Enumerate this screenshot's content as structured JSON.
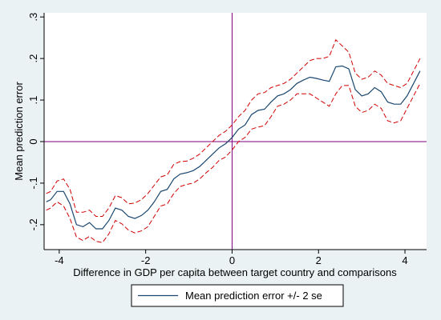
{
  "chart_data": {
    "type": "line",
    "title": "",
    "xlabel": "Difference in GDP per capita between target country and comparisons",
    "ylabel": "Mean prediction error",
    "xlim": [
      -4.35,
      4.5
    ],
    "ylim": [
      -0.26,
      0.31
    ],
    "x_ticks": [
      -4,
      -2,
      0,
      2,
      4
    ],
    "x_tick_labels": [
      "-4",
      "-2",
      "0",
      "2",
      "4"
    ],
    "y_ticks": [
      -0.2,
      -0.1,
      0,
      0.1,
      0.2,
      0.3
    ],
    "y_tick_labels": [
      "-.2",
      "-.1",
      "0",
      ".1",
      ".2",
      ".3"
    ],
    "grid": false,
    "reference_lines": {
      "x": 0,
      "y": 0,
      "color": "#800080"
    },
    "legend": {
      "position": "bottom-center",
      "label": "Mean prediction error +/- 2 se"
    },
    "colors": {
      "mean": "#1a476f",
      "band": "#d00000",
      "reference": "#800080",
      "plot_bg": "#ffffff",
      "outer_bg": "#eaf2f3"
    },
    "series": [
      {
        "role": "mean",
        "style": "solid",
        "x": [
          -4.3,
          -4.2,
          -4.05,
          -3.9,
          -3.75,
          -3.6,
          -3.45,
          -3.3,
          -3.15,
          -3.0,
          -2.85,
          -2.7,
          -2.55,
          -2.4,
          -2.25,
          -2.1,
          -1.95,
          -1.8,
          -1.65,
          -1.5,
          -1.35,
          -1.2,
          -1.05,
          -0.9,
          -0.75,
          -0.6,
          -0.45,
          -0.3,
          -0.15,
          0.0,
          0.15,
          0.3,
          0.45,
          0.6,
          0.75,
          0.9,
          1.05,
          1.2,
          1.35,
          1.5,
          1.65,
          1.8,
          1.95,
          2.1,
          2.25,
          2.4,
          2.55,
          2.7,
          2.85,
          3.0,
          3.15,
          3.3,
          3.45,
          3.6,
          3.75,
          3.9,
          4.05,
          4.2,
          4.35
        ],
        "y": [
          -0.145,
          -0.14,
          -0.12,
          -0.12,
          -0.15,
          -0.2,
          -0.205,
          -0.195,
          -0.21,
          -0.21,
          -0.19,
          -0.16,
          -0.165,
          -0.18,
          -0.185,
          -0.178,
          -0.165,
          -0.145,
          -0.12,
          -0.115,
          -0.09,
          -0.078,
          -0.075,
          -0.07,
          -0.06,
          -0.045,
          -0.03,
          -0.015,
          -0.005,
          0.01,
          0.03,
          0.04,
          0.065,
          0.075,
          0.078,
          0.095,
          0.11,
          0.115,
          0.125,
          0.14,
          0.148,
          0.155,
          0.152,
          0.148,
          0.145,
          0.18,
          0.182,
          0.175,
          0.125,
          0.11,
          0.115,
          0.13,
          0.12,
          0.095,
          0.09,
          0.09,
          0.11,
          0.14,
          0.17
        ]
      },
      {
        "role": "upper",
        "style": "dashed",
        "x": [
          -4.3,
          -4.2,
          -4.05,
          -3.9,
          -3.75,
          -3.6,
          -3.45,
          -3.3,
          -3.15,
          -3.0,
          -2.85,
          -2.7,
          -2.55,
          -2.4,
          -2.25,
          -2.1,
          -1.95,
          -1.8,
          -1.65,
          -1.5,
          -1.35,
          -1.2,
          -1.05,
          -0.9,
          -0.75,
          -0.6,
          -0.45,
          -0.3,
          -0.15,
          0.0,
          0.15,
          0.3,
          0.45,
          0.6,
          0.75,
          0.9,
          1.05,
          1.2,
          1.35,
          1.5,
          1.65,
          1.8,
          1.95,
          2.1,
          2.25,
          2.4,
          2.55,
          2.7,
          2.85,
          3.0,
          3.15,
          3.3,
          3.45,
          3.6,
          3.75,
          3.9,
          4.05,
          4.2,
          4.35
        ],
        "y": [
          -0.125,
          -0.12,
          -0.095,
          -0.09,
          -0.115,
          -0.17,
          -0.17,
          -0.165,
          -0.18,
          -0.18,
          -0.16,
          -0.13,
          -0.135,
          -0.15,
          -0.148,
          -0.14,
          -0.125,
          -0.105,
          -0.085,
          -0.08,
          -0.055,
          -0.048,
          -0.047,
          -0.04,
          -0.03,
          -0.015,
          0.0,
          0.015,
          0.025,
          0.04,
          0.06,
          0.075,
          0.1,
          0.115,
          0.118,
          0.13,
          0.135,
          0.14,
          0.15,
          0.165,
          0.18,
          0.195,
          0.2,
          0.2,
          0.205,
          0.245,
          0.23,
          0.215,
          0.165,
          0.15,
          0.155,
          0.17,
          0.16,
          0.14,
          0.135,
          0.13,
          0.14,
          0.17,
          0.2
        ]
      },
      {
        "role": "lower",
        "style": "dashed",
        "x": [
          -4.3,
          -4.2,
          -4.05,
          -3.9,
          -3.75,
          -3.6,
          -3.45,
          -3.3,
          -3.15,
          -3.0,
          -2.85,
          -2.7,
          -2.55,
          -2.4,
          -2.25,
          -2.1,
          -1.95,
          -1.8,
          -1.65,
          -1.5,
          -1.35,
          -1.2,
          -1.05,
          -0.9,
          -0.75,
          -0.6,
          -0.45,
          -0.3,
          -0.15,
          0.0,
          0.15,
          0.3,
          0.45,
          0.6,
          0.75,
          0.9,
          1.05,
          1.2,
          1.35,
          1.5,
          1.65,
          1.8,
          1.95,
          2.1,
          2.25,
          2.4,
          2.55,
          2.7,
          2.85,
          3.0,
          3.15,
          3.3,
          3.45,
          3.6,
          3.75,
          3.9,
          4.05,
          4.2,
          4.35
        ],
        "y": [
          -0.165,
          -0.16,
          -0.145,
          -0.155,
          -0.185,
          -0.23,
          -0.238,
          -0.228,
          -0.24,
          -0.243,
          -0.222,
          -0.19,
          -0.198,
          -0.213,
          -0.22,
          -0.215,
          -0.205,
          -0.18,
          -0.155,
          -0.15,
          -0.125,
          -0.108,
          -0.103,
          -0.1,
          -0.09,
          -0.075,
          -0.062,
          -0.045,
          -0.037,
          -0.02,
          0.0,
          0.01,
          0.03,
          0.035,
          0.038,
          0.06,
          0.085,
          0.09,
          0.1,
          0.115,
          0.115,
          0.115,
          0.105,
          0.095,
          0.085,
          0.115,
          0.135,
          0.135,
          0.085,
          0.07,
          0.075,
          0.09,
          0.08,
          0.05,
          0.045,
          0.05,
          0.08,
          0.11,
          0.14
        ]
      }
    ]
  }
}
